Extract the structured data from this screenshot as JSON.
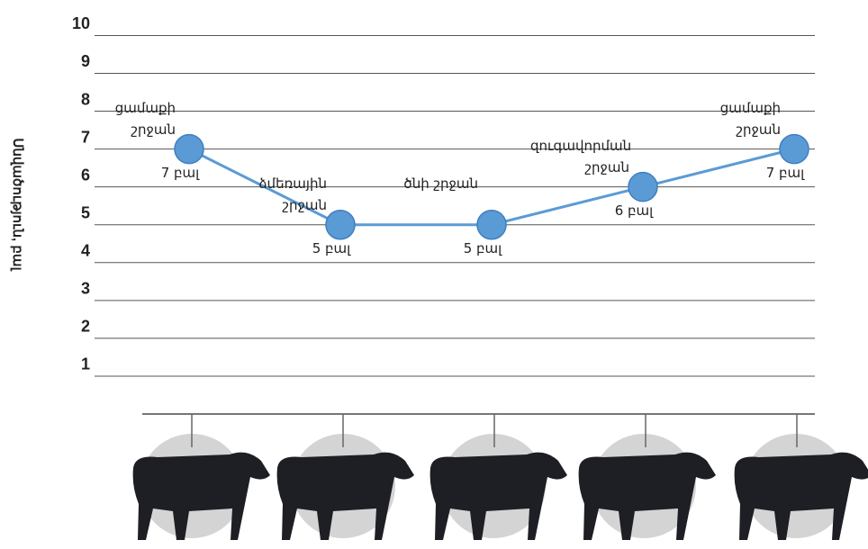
{
  "chart_data": {
    "type": "line",
    "y_label": "Սնվածություն, բալ",
    "categories": [
      "ցամաքի շրջան",
      "ձմեռային շրջան",
      "ծնի շրջան",
      "զուգավորման շրջան",
      "ցամաքի շրջան"
    ],
    "values": [
      7,
      5,
      5,
      6,
      7
    ],
    "value_labels": [
      "7 բալ",
      "5 բալ",
      "5 բալ",
      "6 բալ",
      "7 բալ"
    ],
    "color": "#5b9bd5",
    "ylim": [
      0,
      10.7
    ],
    "yticks": [
      1,
      2,
      3,
      4,
      5,
      6,
      7,
      8,
      9,
      10
    ],
    "grid": true
  }
}
